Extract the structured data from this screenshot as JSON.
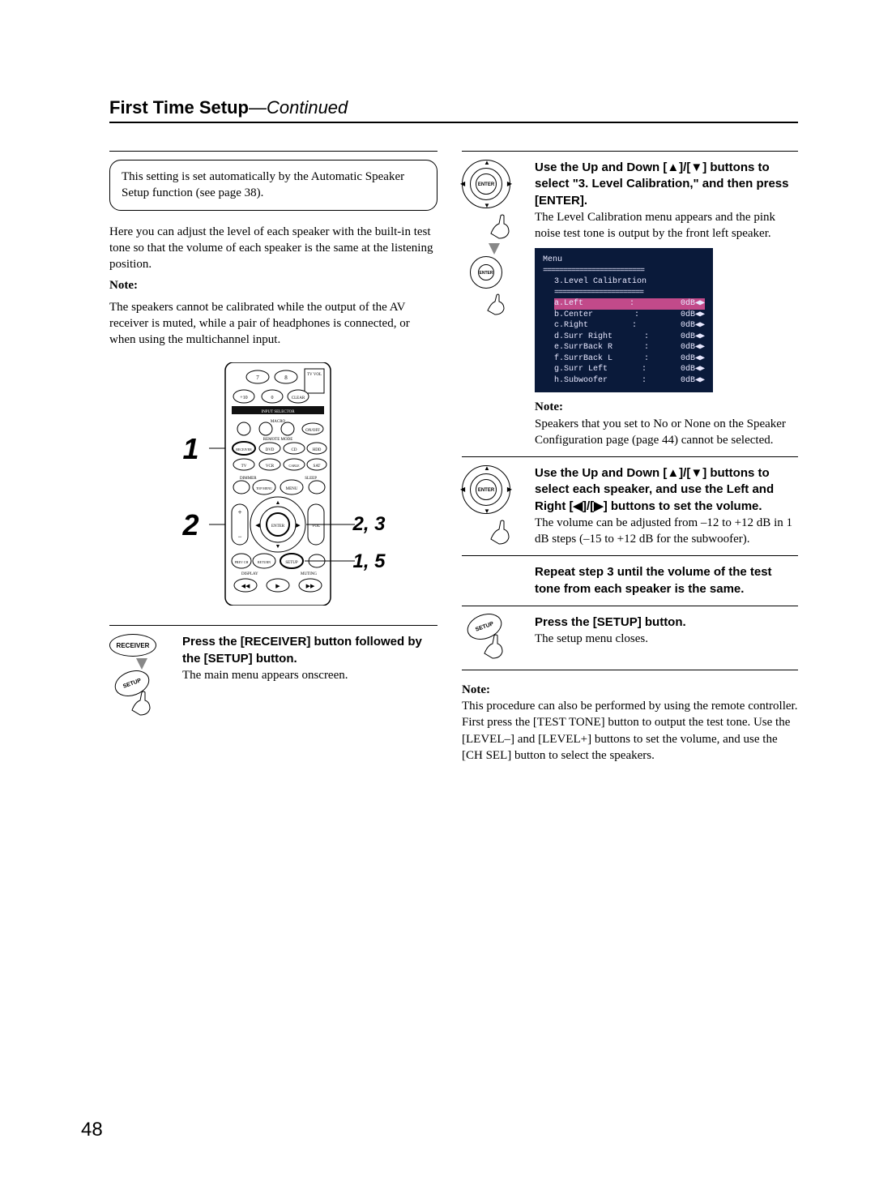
{
  "header": {
    "title": "First Time Setup",
    "cont": "—Continued"
  },
  "left": {
    "note_box": "This setting is set automatically by the Automatic Speaker Setup function (see page 38).",
    "intro": "Here you can adjust the level of each speaker with the built-in test tone so that the volume of each speaker is the same at the listening position.",
    "note_label": "Note:",
    "note_text": "The speakers cannot be calibrated while the output of the AV receiver is muted, while a pair of headphones is connected, or when using the multichannel input.",
    "diagram_nums": {
      "one": "1",
      "two": "2"
    },
    "callouts": {
      "a": "2, 3",
      "b": "1, 5"
    },
    "step1": {
      "btn1": "RECEIVER",
      "btn2": "SETUP",
      "heading": "Press the [RECEIVER] button followed by the [SETUP] button.",
      "text": "The main menu appears onscreen."
    }
  },
  "right": {
    "step2": {
      "enter": "ENTER",
      "heading": "Use the Up and Down [▲]/[▼] buttons to select \"3. Level Calibration,\" and then press [ENTER].",
      "text": "The Level Calibration menu appears and the pink noise test tone is output by the front left speaker.",
      "note_label": "Note:",
      "note_text": "Speakers that you set to No or None on the Speaker Configuration page (page 44) cannot be selected."
    },
    "menu": {
      "title": "Menu",
      "section": "3.Level Calibration",
      "rows": [
        {
          "label": "a.Left",
          "val": "0dB",
          "hl": true
        },
        {
          "label": "b.Center",
          "val": "0dB",
          "hl": false
        },
        {
          "label": "c.Right",
          "val": "0dB",
          "hl": false
        },
        {
          "label": "d.Surr Right",
          "val": "0dB",
          "hl": false
        },
        {
          "label": "e.SurrBack R",
          "val": "0dB",
          "hl": false
        },
        {
          "label": "f.SurrBack L",
          "val": "0dB",
          "hl": false
        },
        {
          "label": "g.Surr Left",
          "val": "0dB",
          "hl": false
        },
        {
          "label": "h.Subwoofer",
          "val": "0dB",
          "hl": false
        }
      ],
      "colors": {
        "background": "#0a1a3a",
        "text": "#e8e8ff",
        "highlight": "#c24a8a"
      }
    },
    "step3": {
      "enter": "ENTER",
      "heading": "Use the Up and Down [▲]/[▼] buttons to select each speaker, and use the Left and Right [◀]/[▶] buttons to set the volume.",
      "text": "The volume can be adjusted from –12 to +12 dB in 1 dB steps (–15 to +12 dB for the subwoofer)."
    },
    "step4": {
      "heading": "Repeat step 3 until the volume of the test tone from each speaker is the same."
    },
    "step5": {
      "btn": "SETUP",
      "heading": "Press the [SETUP] button.",
      "text": "The setup menu closes."
    },
    "bottom_note_label": "Note:",
    "bottom_note": "This procedure can also be performed by using the remote controller. First press the [TEST TONE] button to output the test tone. Use the [LEVEL–] and [LEVEL+] buttons to set the volume, and use the [CH SEL] button to select the speakers."
  },
  "page_number": "48"
}
